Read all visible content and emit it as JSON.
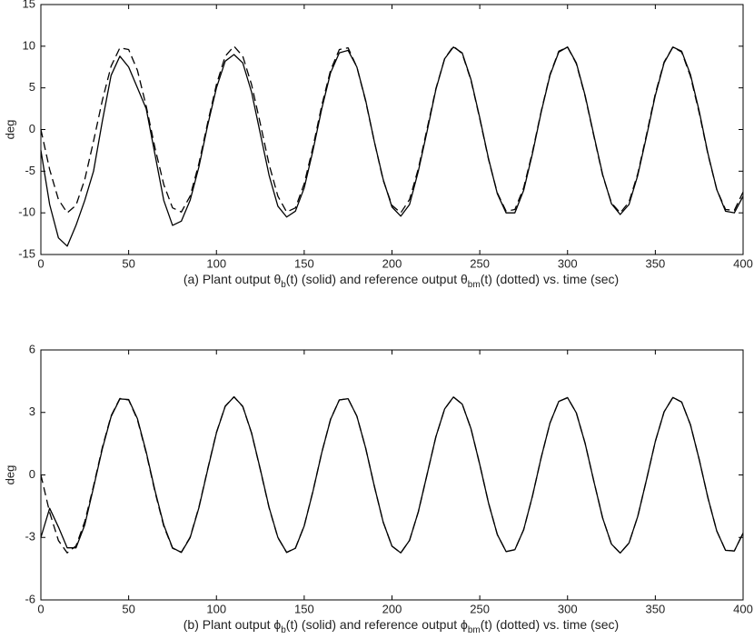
{
  "chart_data": [
    {
      "type": "line",
      "ylabel": "deg",
      "caption": [
        "(a) Plant output θ",
        "b",
        "(t) (solid) and reference output θ",
        "bm",
        "(t) (dotted) vs. time (sec)"
      ],
      "x": [
        0,
        5,
        10,
        15,
        20,
        25,
        30,
        35,
        40,
        45,
        50,
        55,
        60,
        65,
        70,
        75,
        80,
        85,
        90,
        95,
        100,
        105,
        110,
        115,
        120,
        125,
        130,
        135,
        140,
        145,
        150,
        155,
        160,
        165,
        170,
        175,
        180,
        185,
        190,
        195,
        200,
        205,
        210,
        215,
        220,
        225,
        230,
        235,
        240,
        245,
        250,
        255,
        260,
        265,
        270,
        275,
        280,
        285,
        290,
        295,
        300,
        305,
        310,
        315,
        320,
        325,
        330,
        335,
        340,
        345,
        350,
        355,
        360,
        365,
        370,
        375,
        380,
        385,
        390,
        395,
        400
      ],
      "xlim": [
        0,
        400
      ],
      "xticks": [
        0,
        50,
        100,
        150,
        200,
        250,
        300,
        350,
        400
      ],
      "ylim": [
        -15,
        15
      ],
      "yticks": [
        -15,
        -10,
        -5,
        0,
        5,
        10,
        15
      ],
      "series": [
        {
          "color": "#000000",
          "dashed": false,
          "values": [
            -2.5,
            -9,
            -13,
            -14,
            -11.5,
            -8.5,
            -5,
            1,
            6.5,
            8.8,
            7.5,
            5,
            2.5,
            -3,
            -8.5,
            -11.5,
            -11,
            -8.5,
            -4.5,
            0.5,
            5,
            8.2,
            9,
            8,
            4.5,
            -0.5,
            -5.5,
            -9.2,
            -10.5,
            -9.8,
            -7,
            -2.5,
            2.5,
            6.8,
            9.2,
            9.5,
            7.5,
            3.5,
            -1.5,
            -6,
            -9.3,
            -10.4,
            -9,
            -5,
            -0.2,
            4.8,
            8.5,
            9.9,
            9.2,
            6,
            1.4,
            -3.5,
            -7.7,
            -10,
            -10,
            -7.3,
            -2.9,
            2.1,
            6.5,
            9.3,
            9.9,
            8,
            4.1,
            -0.7,
            -5.4,
            -8.9,
            -10.2,
            -9,
            -5.5,
            -0.8,
            4.1,
            8,
            9.9,
            9.4,
            6.6,
            2.2,
            -2.9,
            -7.2,
            -9.8,
            -10,
            -8
          ]
        },
        {
          "color": "#000000",
          "dashed": true,
          "values": [
            0,
            -4.8,
            -8.4,
            -10,
            -9.1,
            -6,
            -1.4,
            3.5,
            7.6,
            9.8,
            9.6,
            7.1,
            2.8,
            -2.2,
            -6.6,
            -9.4,
            -9.9,
            -8,
            -4.1,
            0.8,
            5.4,
            8.8,
            10,
            8.8,
            5.4,
            0.7,
            -4.2,
            -8,
            -9.9,
            -9.4,
            -6.5,
            -2.1,
            2.9,
            7.1,
            9.6,
            9.8,
            7.5,
            3.4,
            -1.5,
            -6.1,
            -9.1,
            -10,
            -8.4,
            -4.7,
            0.1,
            4.9,
            8.5,
            10,
            9.1,
            5.9,
            1.3,
            -3.6,
            -7.6,
            -9.8,
            -9.6,
            -7,
            -2.7,
            2.2,
            6.6,
            9.4,
            9.9,
            7.9,
            4,
            -0.8,
            -5.5,
            -8.8,
            -10,
            -8.7,
            -5.3,
            -0.6,
            4.3,
            8.1,
            9.9,
            9.3,
            6.4,
            2,
            -3,
            -7.2,
            -9.6,
            -9.7,
            -7.5
          ]
        }
      ]
    },
    {
      "type": "line",
      "ylabel": "deg",
      "caption": [
        "(b) Plant output ϕ",
        "b",
        "(t) (solid) and reference output ϕ",
        "bm",
        "(t) (dotted) vs. time (sec)"
      ],
      "x": [
        0,
        5,
        10,
        15,
        20,
        25,
        30,
        35,
        40,
        45,
        50,
        55,
        60,
        65,
        70,
        75,
        80,
        85,
        90,
        95,
        100,
        105,
        110,
        115,
        120,
        125,
        130,
        135,
        140,
        145,
        150,
        155,
        160,
        165,
        170,
        175,
        180,
        185,
        190,
        195,
        200,
        205,
        210,
        215,
        220,
        225,
        230,
        235,
        240,
        245,
        250,
        255,
        260,
        265,
        270,
        275,
        280,
        285,
        290,
        295,
        300,
        305,
        310,
        315,
        320,
        325,
        330,
        335,
        340,
        345,
        350,
        355,
        360,
        365,
        370,
        375,
        380,
        385,
        390,
        395,
        400
      ],
      "xlim": [
        0,
        400
      ],
      "xticks": [
        0,
        50,
        100,
        150,
        200,
        250,
        300,
        350,
        400
      ],
      "ylim": [
        -6,
        6
      ],
      "yticks": [
        -6,
        -3,
        0,
        3,
        6
      ],
      "series": [
        {
          "color": "#000000",
          "dashed": false,
          "values": [
            -3,
            -1.6,
            -2.5,
            -3.5,
            -3.5,
            -2.4,
            -0.6,
            1.25,
            2.8,
            3.65,
            3.62,
            2.7,
            1.1,
            -0.75,
            -2.4,
            -3.5,
            -3.72,
            -3.02,
            -1.58,
            0.25,
            2.02,
            3.29,
            3.75,
            3.29,
            2.02,
            0.27,
            -1.56,
            -3,
            -3.72,
            -3.52,
            -2.45,
            -0.78,
            1.07,
            2.66,
            3.6,
            3.66,
            2.82,
            1.29,
            -0.56,
            -2.27,
            -3.42,
            -3.74,
            -3.14,
            -1.77,
            0.03,
            1.83,
            3.17,
            3.74,
            3.4,
            2.22,
            0.5,
            -1.35,
            -2.86,
            -3.68,
            -3.59,
            -2.63,
            -1.02,
            0.84,
            2.49,
            3.53,
            3.71,
            2.98,
            1.52,
            -0.31,
            -2.07,
            -3.32,
            -3.75,
            -3.27,
            -1.99,
            -0.22,
            1.61,
            3.03,
            3.72,
            3.5,
            2.41,
            0.74,
            -1.11,
            -2.69,
            -3.62,
            -3.65,
            -2.79
          ]
        },
        {
          "color": "#000000",
          "dashed": true,
          "values": [
            0,
            -1.8,
            -3.15,
            -3.74,
            -3.41,
            -2.24,
            -0.53,
            1.32,
            2.84,
            3.67,
            3.6,
            2.65,
            1.05,
            -0.81,
            -2.46,
            -3.52,
            -3.71,
            -2.99,
            -1.55,
            0.28,
            2.04,
            3.3,
            3.75,
            3.28,
            2.01,
            0.25,
            -1.58,
            -3.01,
            -3.72,
            -3.51,
            -2.44,
            -0.77,
            1.08,
            2.67,
            3.6,
            3.66,
            2.82,
            1.29,
            -0.56,
            -2.27,
            -3.42,
            -3.74,
            -3.14,
            -1.77,
            0.03,
            1.83,
            3.17,
            3.74,
            3.4,
            2.22,
            0.5,
            -1.35,
            -2.86,
            -3.68,
            -3.59,
            -2.63,
            -1.02,
            0.84,
            2.49,
            3.53,
            3.71,
            2.98,
            1.52,
            -0.31,
            -2.07,
            -3.32,
            -3.75,
            -3.27,
            -1.99,
            -0.22,
            1.61,
            3.03,
            3.72,
            3.5,
            2.41,
            0.74,
            -1.11,
            -2.69,
            -3.62,
            -3.65,
            -2.79
          ]
        }
      ]
    }
  ]
}
